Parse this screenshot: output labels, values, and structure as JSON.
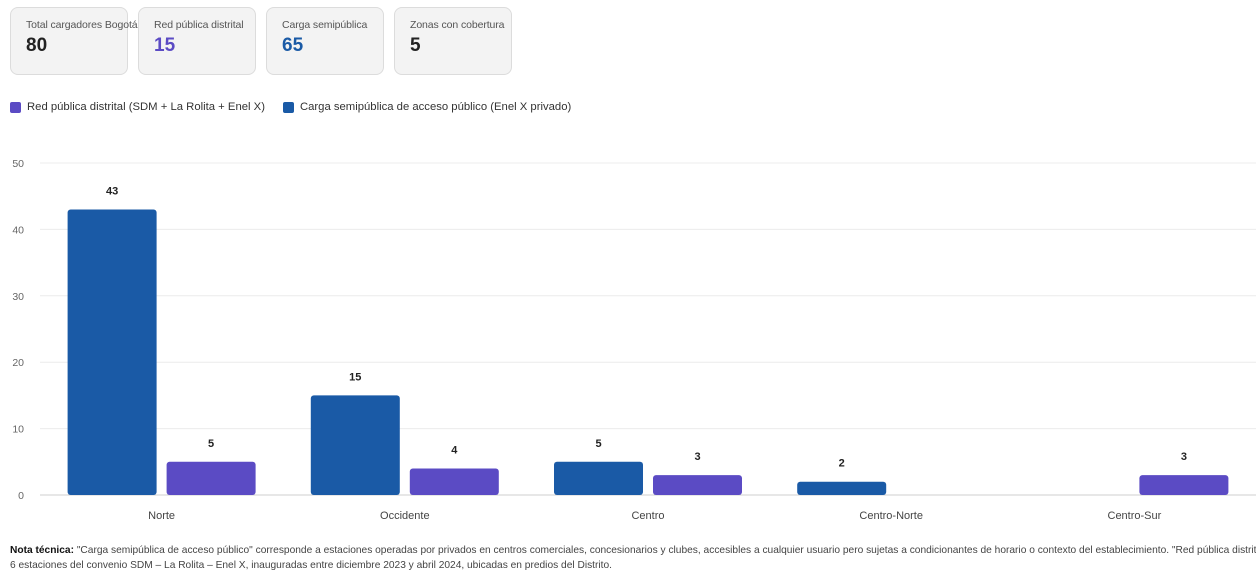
{
  "cards": [
    {
      "label": "Total cargadores Bogotá",
      "value": "80",
      "color": "#222222"
    },
    {
      "label": "Red pública distrital",
      "value": "15",
      "color": "#5b4bc4"
    },
    {
      "label": "Carga semipública",
      "value": "65",
      "color": "#1a5aa6"
    },
    {
      "label": "Zonas con cobertura",
      "value": "5",
      "color": "#222222"
    }
  ],
  "legend": [
    {
      "label": "Red pública distrital (SDM + La Rolita + Enel X)",
      "color": "#5b4bc4"
    },
    {
      "label": "Carga semipública de acceso público (Enel X privado)",
      "color": "#1a5aa6"
    }
  ],
  "chart_data": {
    "type": "bar",
    "categories": [
      "Norte",
      "Occidente",
      "Centro",
      "Centro-Norte",
      "Centro-Sur"
    ],
    "series": [
      {
        "name": "Carga semipública de acceso público (Enel X privado)",
        "color": "#1a5aa6",
        "values": [
          43,
          15,
          5,
          2,
          0
        ]
      },
      {
        "name": "Red pública distrital (SDM + La Rolita + Enel X)",
        "color": "#5b4bc4",
        "values": [
          5,
          4,
          3,
          0,
          3
        ]
      }
    ],
    "yticks": [
      0,
      10,
      20,
      30,
      40,
      50
    ],
    "ylim": [
      0,
      50
    ],
    "grid": true,
    "legend_position": "top-left"
  },
  "note": {
    "label": "Nota técnica:",
    "line1": " \"Carga semipública de acceso público\" corresponde a estaciones operadas por privados en centros comerciales, concesionarios y clubes, accesibles a cualquier usuario pero sujetas a condicionantes de horario o contexto del establecimiento. \"Red pública distrital\" corresponde a las",
    "line2": "6 estaciones del convenio SDM – La Rolita – Enel X, inauguradas entre diciembre 2023 y abril 2024, ubicadas en predios del Distrito."
  }
}
